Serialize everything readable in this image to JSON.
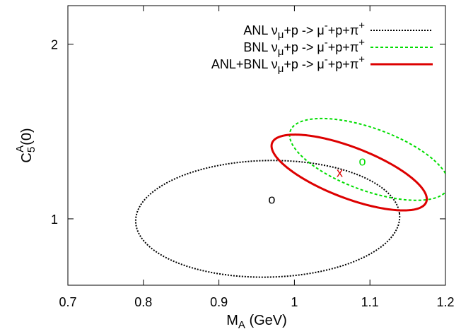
{
  "chart_data": {
    "type": "scatter",
    "xlabel": "M",
    "xlabel_sub": "A",
    "xlabel_unit": " (GeV)",
    "ylabel": "C",
    "ylabel_sub": "5",
    "ylabel_sup": "A",
    "ylabel_arg": "(0)",
    "xlim": [
      0.7,
      1.2
    ],
    "ylim": [
      0.62,
      2.22
    ],
    "xticks": [
      0.7,
      0.8,
      0.9,
      1.0,
      1.1,
      1.2
    ],
    "xtick_labels": [
      "0.7",
      "0.8",
      "0.9",
      "1",
      "1.1",
      "1.2"
    ],
    "yticks": [
      1,
      2
    ],
    "ytick_labels": [
      "1",
      "2"
    ],
    "grid": false,
    "legend_position": "top-right",
    "series": [
      {
        "name": "ANL ν_μ+p -> μ⁻+p+π⁺",
        "prefix": "ANL ν",
        "nu_sub": "μ",
        "reaction_mid": "+p -> μ",
        "mu_sup": "-",
        "reaction_tail": "+p+π",
        "pi_sup": "+",
        "style": "dotted",
        "color": "#000000",
        "contour": {
          "center": [
            0.9646,
            1.0
          ],
          "extreme_points": [
            [
              0.79,
              0.969
            ],
            [
              1.139,
              1.031
            ],
            [
              0.95,
              1.42
            ],
            [
              0.97,
              0.755
            ]
          ]
        },
        "best_fit": {
          "x": 0.97,
          "y": 1.11,
          "symbol": "o",
          "color": "#000000"
        }
      },
      {
        "name": "BNL ν_μ+p -> μ⁻+p+π⁺",
        "prefix": "BNL ν",
        "nu_sub": "μ",
        "reaction_mid": "+p -> μ",
        "mu_sup": "-",
        "reaction_tail": "+p+π",
        "pi_sup": "+",
        "style": "dashed",
        "color": "#00dd00",
        "contour": {
          "center": [
            1.099,
            1.34
          ],
          "extreme_points": [
            [
              0.998,
              1.42
            ],
            [
              1.2,
              1.26
            ],
            [
              1.07,
              1.56
            ],
            [
              1.13,
              1.12
            ]
          ]
        },
        "best_fit": {
          "x": 1.09,
          "y": 1.33,
          "symbol": "o",
          "color": "#00dd00"
        }
      },
      {
        "name": "ANL+BNL ν_μ+p -> μ⁻+p+π⁺",
        "prefix": "ANL+BNL ν",
        "nu_sub": "μ",
        "reaction_mid": "+p -> μ",
        "mu_sup": "-",
        "reaction_tail": "+p+π",
        "pi_sup": "+",
        "style": "solid",
        "color": "#dd0000",
        "contour": {
          "center": [
            1.0725,
            1.265
          ],
          "extreme_points": [
            [
              0.975,
              1.36
            ],
            [
              1.17,
              1.17
            ],
            [
              1.04,
              1.46
            ],
            [
              1.105,
              1.07
            ]
          ]
        },
        "best_fit": {
          "x": 1.06,
          "y": 1.265,
          "symbol": "x",
          "color": "#dd0000"
        }
      }
    ]
  }
}
